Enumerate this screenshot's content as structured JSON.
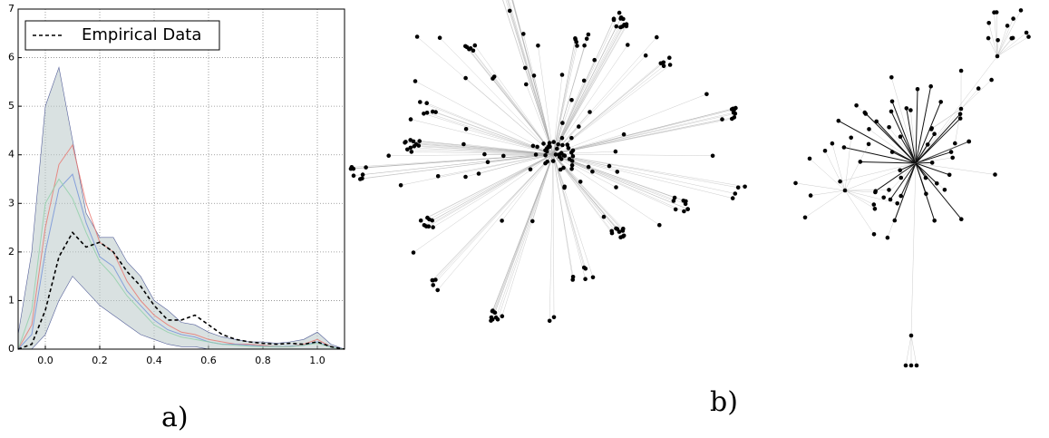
{
  "chart_data": {
    "type": "line",
    "x": [
      -0.1,
      -0.05,
      0.0,
      0.05,
      0.1,
      0.15,
      0.2,
      0.25,
      0.3,
      0.35,
      0.4,
      0.45,
      0.5,
      0.55,
      0.6,
      0.65,
      0.7,
      0.75,
      0.8,
      0.85,
      0.9,
      0.95,
      1.0,
      1.05,
      1.1
    ],
    "series": [
      {
        "name": "Empirical Data",
        "color": "#000000",
        "dashed": true,
        "values": [
          0,
          0.1,
          0.8,
          1.9,
          2.4,
          2.1,
          2.2,
          2.0,
          1.6,
          1.3,
          0.9,
          0.6,
          0.6,
          0.7,
          0.5,
          0.3,
          0.2,
          0.15,
          0.12,
          0.1,
          0.12,
          0.1,
          0.15,
          0.05,
          0
        ]
      }
    ],
    "band": {
      "color": "#b9c9c9",
      "upper": [
        0.3,
        2.0,
        5.0,
        5.8,
        4.3,
        2.8,
        2.3,
        2.3,
        1.8,
        1.5,
        1.0,
        0.8,
        0.55,
        0.5,
        0.35,
        0.25,
        0.2,
        0.15,
        0.15,
        0.12,
        0.15,
        0.2,
        0.35,
        0.1,
        0
      ],
      "lower": [
        0,
        0,
        0.3,
        1.0,
        1.5,
        1.2,
        0.9,
        0.7,
        0.5,
        0.3,
        0.2,
        0.1,
        0.05,
        0.05,
        0,
        0,
        0,
        0,
        0,
        0,
        0,
        0,
        0,
        0,
        0
      ]
    },
    "samples": [
      {
        "color": "#e8736b",
        "values": [
          0,
          0.5,
          2.5,
          3.8,
          4.2,
          3.0,
          2.2,
          2.0,
          1.4,
          1.0,
          0.7,
          0.5,
          0.35,
          0.3,
          0.2,
          0.15,
          0.1,
          0.1,
          0.08,
          0.05,
          0.05,
          0.1,
          0.2,
          0.05,
          0
        ]
      },
      {
        "color": "#6f8fd8",
        "values": [
          0,
          0.3,
          2.0,
          3.3,
          3.6,
          2.6,
          1.9,
          1.7,
          1.2,
          0.9,
          0.6,
          0.4,
          0.3,
          0.25,
          0.15,
          0.1,
          0.1,
          0.08,
          0.06,
          0.05,
          0.06,
          0.08,
          0.15,
          0.05,
          0
        ]
      },
      {
        "color": "#8fd0a8",
        "values": [
          0,
          0.8,
          3.0,
          3.5,
          3.1,
          2.4,
          1.8,
          1.5,
          1.1,
          0.8,
          0.5,
          0.35,
          0.25,
          0.2,
          0.15,
          0.1,
          0.08,
          0.06,
          0.05,
          0.05,
          0.05,
          0.08,
          0.12,
          0.04,
          0
        ]
      }
    ],
    "xlim": [
      -0.1,
      1.1
    ],
    "xticks": [
      {
        "value": 0.0,
        "label": "0.0"
      },
      0.2,
      0.4,
      0.6,
      0.8,
      {
        "value": 1.0,
        "label": "1.0"
      }
    ],
    "ylim": [
      0,
      7
    ],
    "yticks": [
      0,
      1,
      2,
      3,
      4,
      5,
      6,
      7
    ],
    "grid": true,
    "legend": "upper-left"
  },
  "panel_labels": [
    "a)",
    "b)"
  ]
}
